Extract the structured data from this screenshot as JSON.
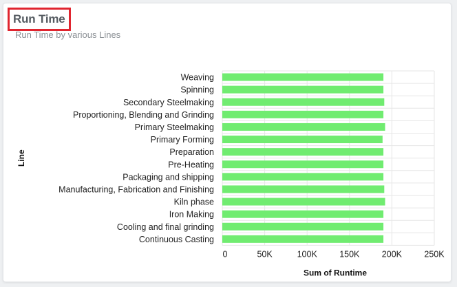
{
  "card": {
    "title": "Run Time",
    "subtitle": "Run Time by various Lines"
  },
  "chart_data": {
    "type": "bar",
    "orientation": "horizontal",
    "title": "Run Time",
    "subtitle": "Run Time by various Lines",
    "xlabel": "Sum of Runtime",
    "ylabel": "Line",
    "categories": [
      "Weaving",
      "Spinning",
      "Secondary Steelmaking",
      "Proportioning, Blending and Grinding",
      "Primary Steelmaking",
      "Primary Forming",
      "Preparation",
      "Pre-Heating",
      "Packaging and shipping",
      "Manufacturing, Fabrication and Finishing",
      "Kiln phase",
      "Iron Making",
      "Cooling and final grinding",
      "Continuous Casting"
    ],
    "values": [
      190000,
      190000,
      191000,
      190000,
      192000,
      189000,
      190000,
      190000,
      190000,
      191000,
      192000,
      190000,
      190000,
      190000
    ],
    "xlim": [
      0,
      250000
    ],
    "xticks": [
      0,
      50000,
      100000,
      150000,
      200000,
      250000
    ],
    "xtick_labels": [
      "0",
      "50K",
      "100K",
      "150K",
      "200K",
      "250K"
    ],
    "grid": true,
    "bar_color": "#70ec70"
  }
}
